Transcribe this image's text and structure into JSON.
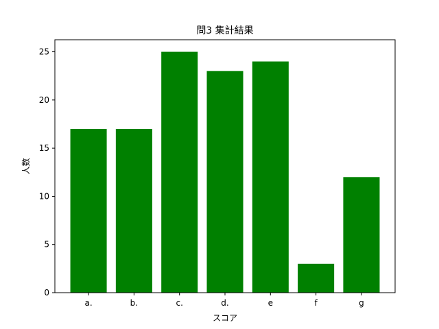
{
  "chart_data": {
    "type": "bar",
    "title": "問3 集計結果",
    "xlabel": "スコア",
    "ylabel": "人数",
    "categories": [
      "a.",
      "b.",
      "c.",
      "d.",
      "e",
      "f",
      "g"
    ],
    "values": [
      17,
      17,
      25,
      23,
      24,
      3,
      12
    ],
    "ylim": [
      0,
      26.25
    ],
    "yticks": [
      0,
      5,
      10,
      15,
      20,
      25
    ],
    "bar_color": "#008000",
    "grid": false,
    "legend": "none"
  }
}
